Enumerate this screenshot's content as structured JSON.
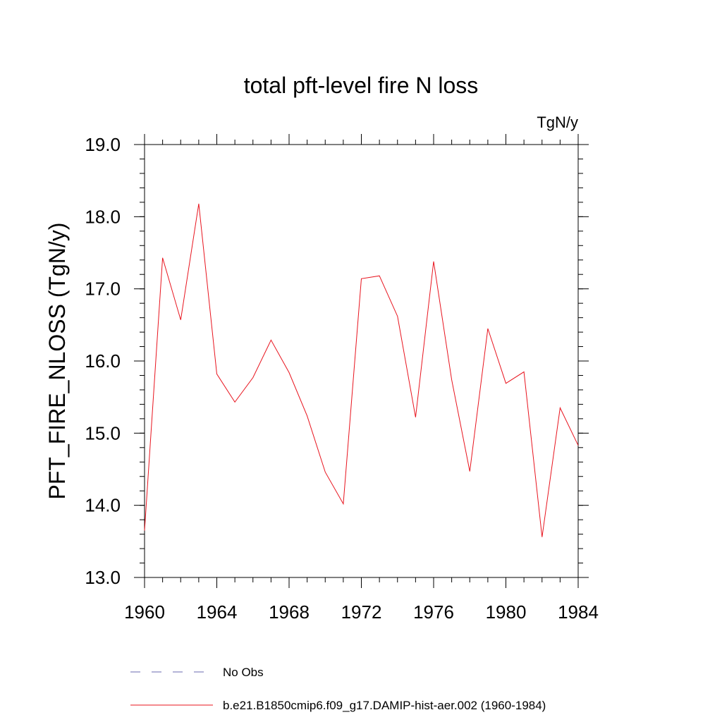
{
  "chart_data": {
    "type": "line",
    "title": "total pft-level fire N loss",
    "units_label": "TgN/y",
    "ylabel": "PFT_FIRE_NLOSS  (TgN/y)",
    "xlabel": "",
    "xlim": [
      1960,
      1984
    ],
    "ylim": [
      13.0,
      19.0
    ],
    "x_ticks": [
      "1960",
      "1964",
      "1968",
      "1972",
      "1976",
      "1980",
      "1984"
    ],
    "y_ticks": [
      "13.0",
      "14.0",
      "15.0",
      "16.0",
      "17.0",
      "18.0",
      "19.0"
    ],
    "grid": false,
    "legend_position": "bottom",
    "series": [
      {
        "name": "b.e21.B1850cmip6.f09_g17.DAMIP-hist-aer.002 (1960-1984)",
        "color": "#e8141e",
        "x": [
          1960,
          1961,
          1962,
          1963,
          1964,
          1965,
          1966,
          1967,
          1968,
          1969,
          1970,
          1971,
          1972,
          1973,
          1974,
          1975,
          1976,
          1977,
          1978,
          1979,
          1980,
          1981,
          1982,
          1983,
          1984
        ],
        "values": [
          13.65,
          17.43,
          16.57,
          18.18,
          15.82,
          15.43,
          15.77,
          16.29,
          15.84,
          15.24,
          14.46,
          14.02,
          17.14,
          17.18,
          16.62,
          15.22,
          17.38,
          15.74,
          14.47,
          16.45,
          15.69,
          15.85,
          13.56,
          15.35,
          14.83
        ]
      }
    ],
    "legend": [
      {
        "label": "No Obs",
        "color": "#6a6ab0",
        "style": "dashed"
      },
      {
        "label": "b.e21.B1850cmip6.f09_g17.DAMIP-hist-aer.002 (1960-1984)",
        "color": "#e8141e",
        "style": "solid"
      }
    ]
  }
}
